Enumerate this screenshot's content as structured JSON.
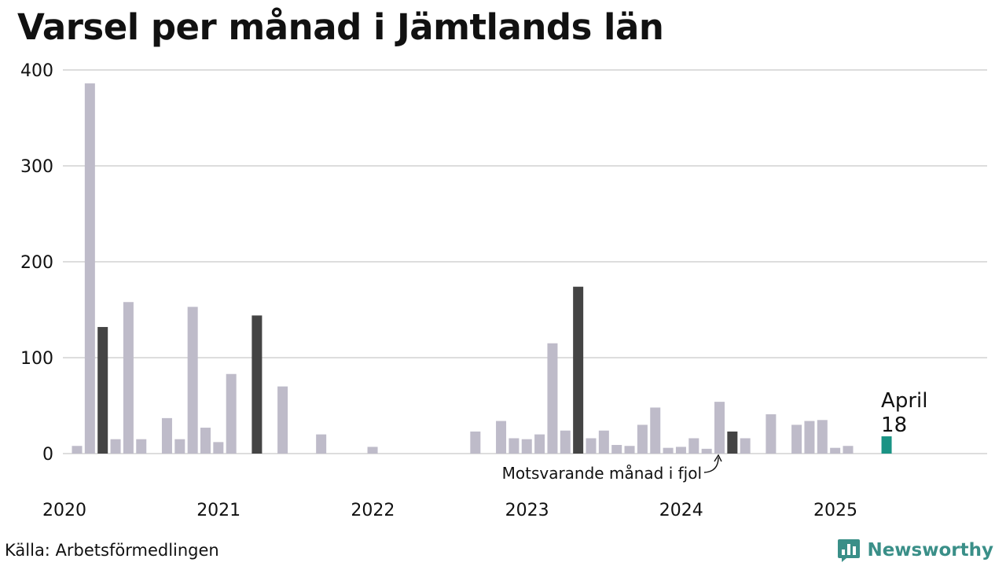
{
  "title": "Varsel per månad i Jämtlands län",
  "source": "Källa: Arbetsförmedlingen",
  "brand": "Newsworthy",
  "colors": {
    "bar": "#bebbc9",
    "bar_same_month": "#444444",
    "bar_latest": "#1a9384",
    "grid": "#dddddd",
    "brand": "#3a8f88"
  },
  "chart_data": {
    "type": "bar",
    "title": "Varsel per månad i Jämtlands län",
    "xlabel": "",
    "ylabel": "",
    "ylim": [
      0,
      400
    ],
    "yticks": [
      "0",
      "100",
      "200",
      "300",
      "400"
    ],
    "year_labels": [
      "2020",
      "2021",
      "2022",
      "2023",
      "2024",
      "2025"
    ],
    "grid": true,
    "start": "2020-01",
    "end": "2025-04",
    "series": [
      {
        "values": [
          8,
          386,
          132,
          15,
          158,
          15,
          0,
          37,
          15,
          153,
          27,
          12,
          83,
          0,
          144,
          0,
          70,
          0,
          0,
          20,
          0,
          0,
          0,
          7,
          0,
          0,
          0,
          0,
          0,
          0,
          0,
          23,
          0,
          34,
          16,
          15,
          20,
          115,
          24,
          174,
          16,
          24,
          9,
          8,
          30,
          48,
          6,
          7,
          16,
          5,
          54,
          23,
          16,
          0,
          41,
          0,
          30,
          34,
          35,
          6,
          8,
          0,
          0,
          18
        ]
      }
    ],
    "highlight_months": [
      "2020-03",
      "2021-03",
      "2023-04",
      "2024-04"
    ],
    "annotations": {
      "latest_month": "April",
      "latest_value": "18",
      "same_month_note": "Motsvarande månad i fjol"
    }
  }
}
